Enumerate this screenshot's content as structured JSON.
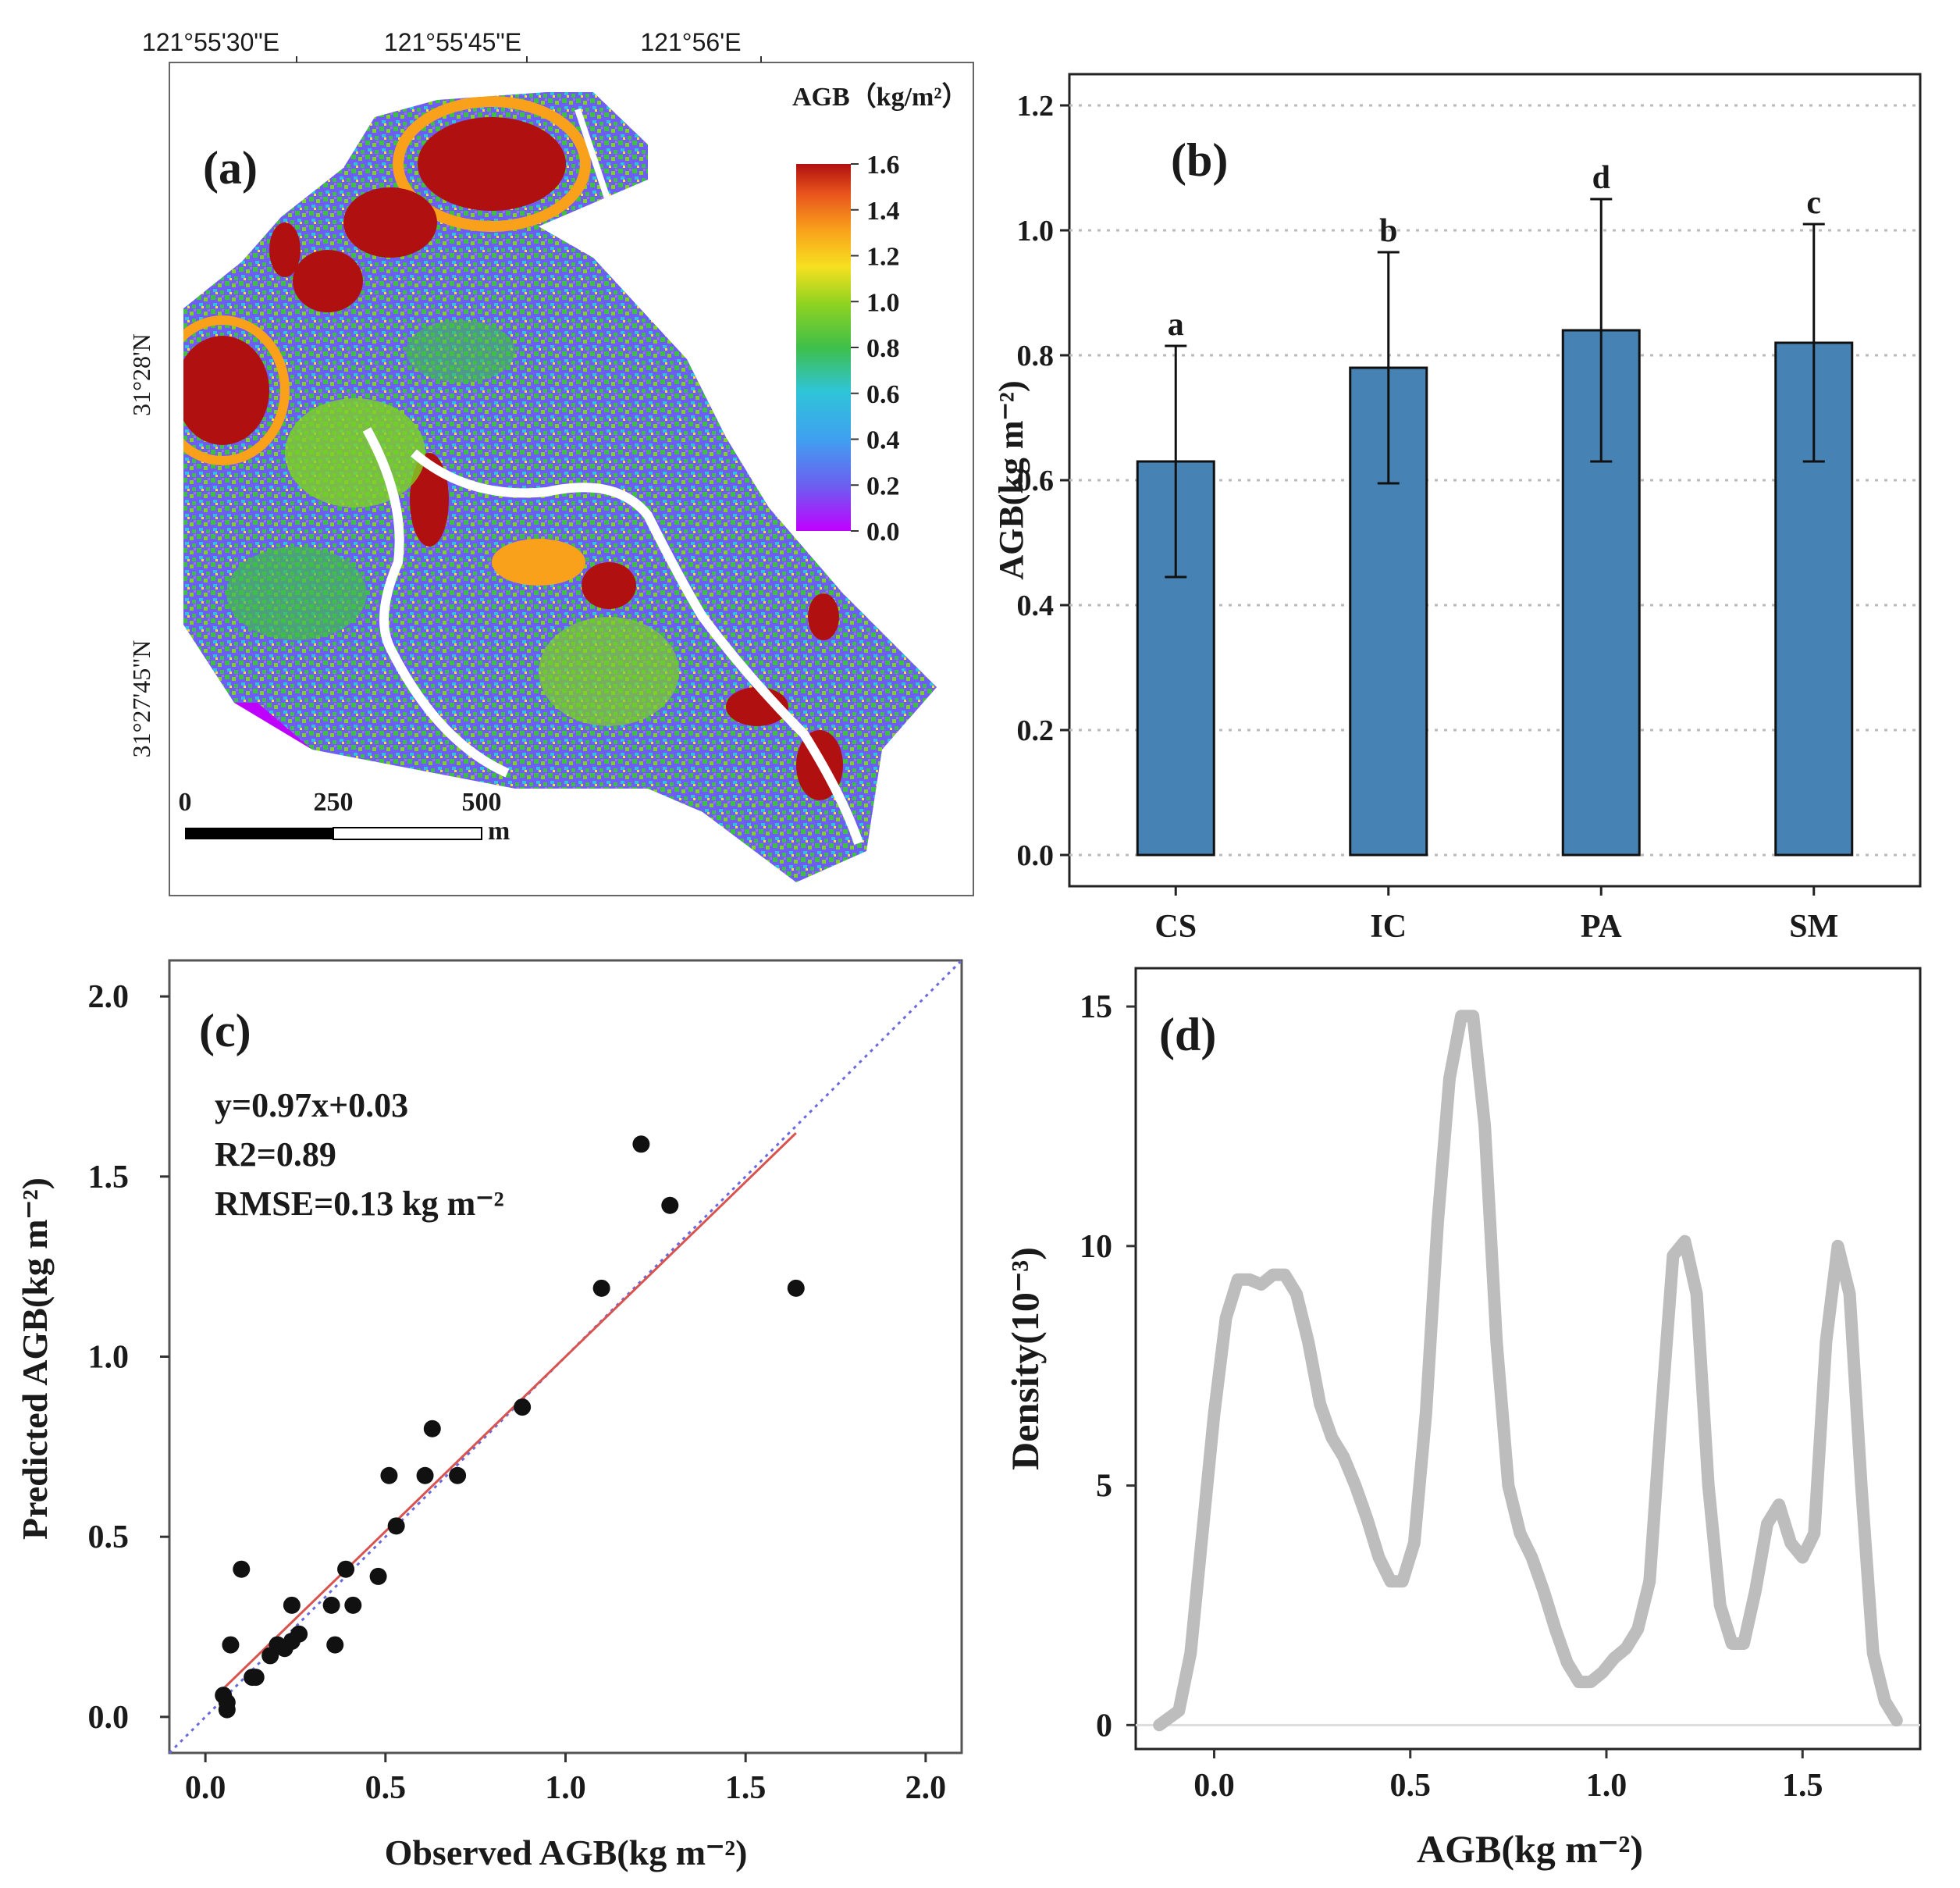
{
  "colors": {
    "bar": "#4682b4",
    "scatter_point": "#111111",
    "fit_line": "#d9534f",
    "one_to_one": "#6a6ae0",
    "density_line": "#bdbdbd",
    "grid": "#bbbbbb"
  },
  "panel_a": {
    "label": "(a)",
    "legend_title": "AGB（kg/m²）",
    "legend_ticks": [
      "1.6",
      "1.4",
      "1.2",
      "1.0",
      "0.8",
      "0.6",
      "0.4",
      "0.2",
      "0.0"
    ],
    "lon_labels": [
      "121°55'30\"E",
      "121°55'45\"E",
      "121°56'E"
    ],
    "lat_labels": [
      "31°28'N",
      "31°27'45\"N"
    ],
    "scale_labels": [
      "0",
      "250",
      "500"
    ],
    "scale_unit": "m",
    "colormap": [
      "#c000ff",
      "#6d5df0",
      "#3fa0f0",
      "#2fc4d8",
      "#3fbf4a",
      "#7ed321",
      "#f7e020",
      "#f9a11b",
      "#e8531c",
      "#b11010"
    ]
  },
  "chart_data": [
    {
      "panel": "(b)",
      "type": "bar",
      "categories": [
        "CS",
        "IC",
        "PA",
        "SM"
      ],
      "values": [
        0.63,
        0.78,
        0.84,
        0.82
      ],
      "errors": [
        0.185,
        0.185,
        0.21,
        0.19
      ],
      "letters": [
        "a",
        "b",
        "d",
        "c"
      ],
      "ylabel": "AGB(kg m⁻²)",
      "ylim": [
        -0.05,
        1.25
      ],
      "yticks": [
        "0.0",
        "0.2",
        "0.4",
        "0.6",
        "0.8",
        "1.0",
        "1.2"
      ],
      "grid": true
    },
    {
      "panel": "(c)",
      "type": "scatter",
      "xlabel": "Observed AGB(kg m⁻²)",
      "ylabel": "Predicted AGB(kg m⁻²)",
      "xlim": [
        -0.1,
        2.1
      ],
      "ylim": [
        -0.1,
        2.1
      ],
      "xticks": [
        "0.0",
        "0.5",
        "1.0",
        "1.5",
        "2.0"
      ],
      "yticks": [
        "0.0",
        "0.5",
        "1.0",
        "1.5",
        "2.0"
      ],
      "annotations": [
        "y=0.97x+0.03",
        "R2=0.89",
        "RMSE=0.13 kg m⁻²"
      ],
      "fit": {
        "slope": 0.97,
        "intercept": 0.03,
        "x_range": [
          0.05,
          1.64
        ]
      },
      "points": [
        [
          0.05,
          0.06
        ],
        [
          0.06,
          0.02
        ],
        [
          0.06,
          0.04
        ],
        [
          0.07,
          0.2
        ],
        [
          0.1,
          0.41
        ],
        [
          0.13,
          0.11
        ],
        [
          0.14,
          0.11
        ],
        [
          0.18,
          0.17
        ],
        [
          0.2,
          0.2
        ],
        [
          0.22,
          0.19
        ],
        [
          0.24,
          0.21
        ],
        [
          0.24,
          0.31
        ],
        [
          0.26,
          0.23
        ],
        [
          0.35,
          0.31
        ],
        [
          0.36,
          0.2
        ],
        [
          0.39,
          0.41
        ],
        [
          0.41,
          0.31
        ],
        [
          0.48,
          0.39
        ],
        [
          0.51,
          0.67
        ],
        [
          0.53,
          0.53
        ],
        [
          0.61,
          0.67
        ],
        [
          0.63,
          0.8
        ],
        [
          0.7,
          0.67
        ],
        [
          0.88,
          0.86
        ],
        [
          1.1,
          1.19
        ],
        [
          1.21,
          1.59
        ],
        [
          1.29,
          1.42
        ],
        [
          1.64,
          1.19
        ]
      ]
    },
    {
      "panel": "(d)",
      "type": "line",
      "xlabel": "AGB(kg m⁻²)",
      "ylabel": "Density(10⁻³)",
      "xlim": [
        -0.2,
        1.8
      ],
      "ylim": [
        -0.5,
        15.8
      ],
      "xticks": [
        "0.0",
        "0.5",
        "1.0",
        "1.5"
      ],
      "yticks": [
        "0",
        "5",
        "10",
        "15"
      ],
      "x": [
        -0.14,
        -0.09,
        -0.06,
        -0.03,
        0.0,
        0.03,
        0.06,
        0.09,
        0.12,
        0.15,
        0.18,
        0.21,
        0.24,
        0.27,
        0.3,
        0.33,
        0.36,
        0.39,
        0.42,
        0.45,
        0.48,
        0.51,
        0.54,
        0.57,
        0.6,
        0.63,
        0.66,
        0.69,
        0.72,
        0.75,
        0.78,
        0.81,
        0.84,
        0.87,
        0.9,
        0.93,
        0.96,
        0.99,
        1.02,
        1.05,
        1.08,
        1.11,
        1.14,
        1.17,
        1.2,
        1.23,
        1.26,
        1.29,
        1.32,
        1.35,
        1.38,
        1.41,
        1.44,
        1.47,
        1.5,
        1.53,
        1.56,
        1.59,
        1.62,
        1.65,
        1.68,
        1.71,
        1.74
      ],
      "y": [
        0.0,
        0.3,
        1.5,
        4.0,
        6.5,
        8.5,
        9.3,
        9.3,
        9.2,
        9.4,
        9.4,
        9.0,
        8.0,
        6.7,
        6.0,
        5.6,
        5.0,
        4.3,
        3.5,
        3.0,
        3.0,
        3.8,
        6.5,
        10.5,
        13.5,
        14.8,
        14.8,
        12.5,
        8.0,
        5.0,
        4.0,
        3.5,
        2.8,
        2.0,
        1.3,
        0.9,
        0.9,
        1.1,
        1.4,
        1.6,
        2.0,
        3.0,
        6.5,
        9.8,
        10.1,
        9.0,
        5.0,
        2.5,
        1.7,
        1.7,
        2.8,
        4.2,
        4.6,
        3.8,
        3.5,
        4.0,
        8.0,
        10.0,
        9.0,
        5.0,
        1.5,
        0.5,
        0.1
      ]
    }
  ]
}
